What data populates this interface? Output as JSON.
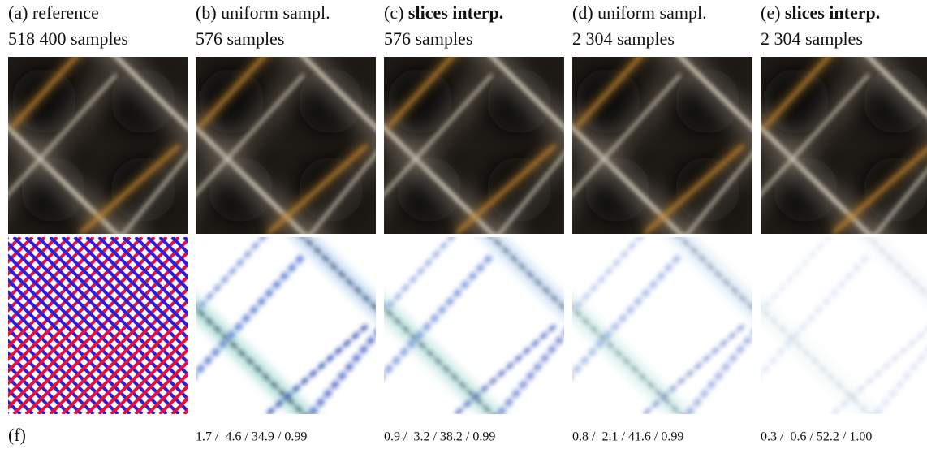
{
  "columns": [
    {
      "label": "(a)",
      "method": "reference",
      "bold": false,
      "samples": "518 400 samples"
    },
    {
      "label": "(b)",
      "method": "uniform sampl.",
      "bold": false,
      "samples": "576 samples"
    },
    {
      "label": "(c)",
      "method": "slices interp.",
      "bold": true,
      "samples": "576 samples"
    },
    {
      "label": "(d)",
      "method": "uniform sampl.",
      "bold": false,
      "samples": "2 304 samples"
    },
    {
      "label": "(e)",
      "method": "slices interp.",
      "bold": true,
      "samples": "2 304 samples"
    }
  ],
  "footer": {
    "label": "(f)",
    "metrics": [
      "1.7 /  4.6 / 34.9 / 0.99",
      "0.9 /  3.2 / 38.2 / 0.99",
      "0.8 /  2.1 / 41.6 / 0.99",
      "0.3 /  0.6 / 52.2 / 1.00"
    ]
  }
}
